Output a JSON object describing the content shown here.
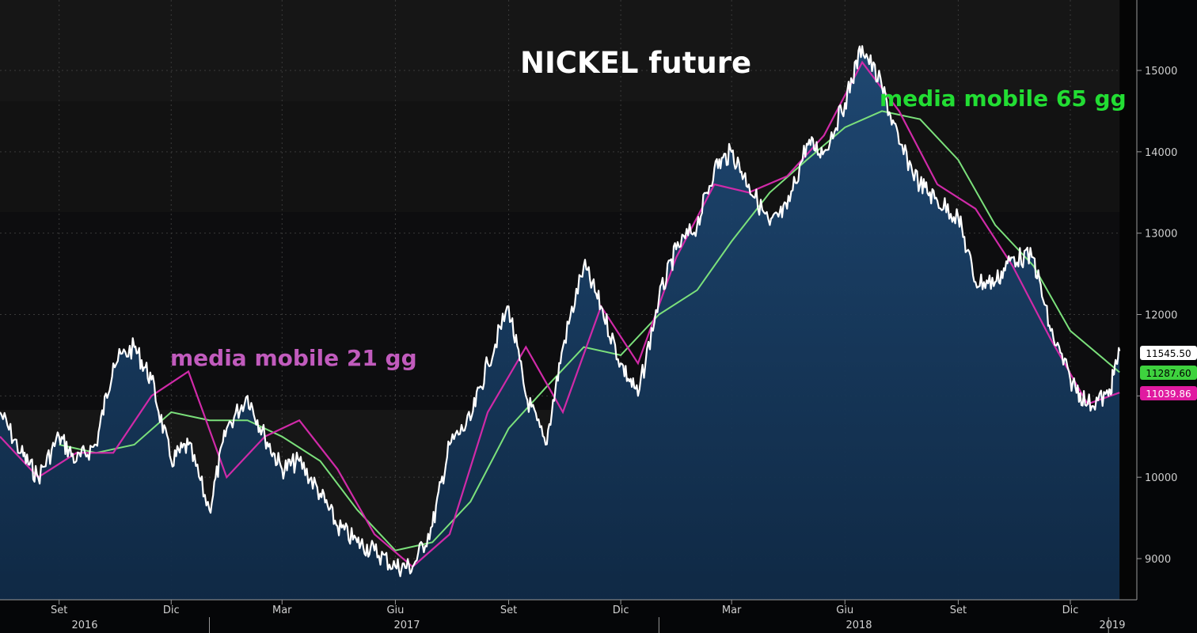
{
  "chart_data": {
    "type": "line",
    "title": "NICKEL future",
    "annotations": [
      {
        "text": "media mobile 21 gg",
        "color": "#c15bbd"
      },
      {
        "text": "media mobile 65 gg",
        "color": "#22dd33"
      }
    ],
    "x_month_labels": [
      "Set",
      "Dic",
      "Mar",
      "Giu",
      "Set",
      "Dic",
      "Mar",
      "Giu",
      "Set",
      "Dic"
    ],
    "x_year_labels": [
      "2016",
      "2017",
      "2018",
      "2019"
    ],
    "y_ticks": [
      9000,
      10000,
      11000,
      12000,
      13000,
      14000,
      15000
    ],
    "ylim": [
      8500,
      15850
    ],
    "grid": true,
    "colors": {
      "price": "#ffffff",
      "ma21": "#d02aa8",
      "ma65": "#7be07b",
      "fill": "#173a5e",
      "background": "#161616"
    },
    "last_values": [
      {
        "label": "11545.50",
        "value": 11545.5,
        "bg": "#ffffff",
        "fg": "#000000"
      },
      {
        "label": "11287.60",
        "value": 11287.6,
        "bg": "#3ed23e",
        "fg": "#000000"
      },
      {
        "label": "11039.86",
        "value": 11039.86,
        "bg": "#e01aa0",
        "fg": "#ffffff"
      }
    ],
    "series": [
      {
        "name": "NICKEL future",
        "x": [
          "2016-07-15",
          "2016-08-01",
          "2016-08-15",
          "2016-09-01",
          "2016-09-15",
          "2016-10-01",
          "2016-10-15",
          "2016-11-01",
          "2016-11-15",
          "2016-12-01",
          "2016-12-15",
          "2017-01-01",
          "2017-01-15",
          "2017-02-01",
          "2017-02-15",
          "2017-03-01",
          "2017-03-15",
          "2017-04-01",
          "2017-04-15",
          "2017-05-01",
          "2017-05-15",
          "2017-06-01",
          "2017-06-15",
          "2017-07-01",
          "2017-07-15",
          "2017-08-01",
          "2017-08-15",
          "2017-09-01",
          "2017-09-15",
          "2017-10-01",
          "2017-10-15",
          "2017-11-01",
          "2017-11-15",
          "2017-12-01",
          "2017-12-15",
          "2018-01-01",
          "2018-01-15",
          "2018-02-01",
          "2018-02-15",
          "2018-03-01",
          "2018-03-15",
          "2018-04-01",
          "2018-04-15",
          "2018-05-01",
          "2018-05-15",
          "2018-06-01",
          "2018-06-15",
          "2018-07-01",
          "2018-07-15",
          "2018-08-01",
          "2018-08-15",
          "2018-09-01",
          "2018-09-15",
          "2018-10-01",
          "2018-10-15",
          "2018-11-01",
          "2018-11-15",
          "2018-12-01",
          "2018-12-15",
          "2019-01-01",
          "2019-01-10"
        ],
        "values": [
          10800,
          10300,
          10000,
          10500,
          10200,
          10400,
          11400,
          11600,
          11200,
          10200,
          10400,
          9600,
          10600,
          11000,
          10500,
          10100,
          10200,
          9800,
          9400,
          9200,
          9100,
          8900,
          8900,
          9400,
          10400,
          10700,
          11400,
          12100,
          11000,
          10400,
          11600,
          12600,
          12100,
          11400,
          11000,
          12200,
          12800,
          13100,
          13800,
          14000,
          13600,
          13100,
          13300,
          14100,
          14000,
          14600,
          15300,
          14800,
          14100,
          13600,
          13400,
          13200,
          12400,
          12400,
          12700,
          12700,
          11800,
          11200,
          10900,
          11000,
          11550
        ]
      },
      {
        "name": "media mobile 21 gg",
        "x": [
          "2016-07-15",
          "2016-08-15",
          "2016-09-15",
          "2016-10-15",
          "2016-11-15",
          "2016-12-15",
          "2017-01-15",
          "2017-02-15",
          "2017-03-15",
          "2017-04-15",
          "2017-05-15",
          "2017-06-15",
          "2017-07-15",
          "2017-08-15",
          "2017-09-15",
          "2017-10-15",
          "2017-11-15",
          "2017-12-15",
          "2018-01-15",
          "2018-02-15",
          "2018-03-15",
          "2018-04-15",
          "2018-05-15",
          "2018-06-15",
          "2018-07-15",
          "2018-08-15",
          "2018-09-15",
          "2018-10-15",
          "2018-11-15",
          "2018-12-15",
          "2019-01-10"
        ],
        "values": [
          10500,
          10000,
          10300,
          10300,
          11000,
          11300,
          10000,
          10500,
          10700,
          10100,
          9300,
          8900,
          9300,
          10800,
          11600,
          10800,
          12100,
          11400,
          12700,
          13600,
          13500,
          13700,
          14200,
          15100,
          14500,
          13600,
          13300,
          12600,
          11700,
          10900,
          11040
        ]
      },
      {
        "name": "media mobile 65 gg",
        "x": [
          "2016-09-01",
          "2016-10-01",
          "2016-11-01",
          "2016-12-01",
          "2017-01-01",
          "2017-02-01",
          "2017-03-01",
          "2017-04-01",
          "2017-05-01",
          "2017-06-01",
          "2017-07-01",
          "2017-08-01",
          "2017-09-01",
          "2017-10-01",
          "2017-11-01",
          "2017-12-01",
          "2018-01-01",
          "2018-02-01",
          "2018-03-01",
          "2018-04-01",
          "2018-05-01",
          "2018-06-01",
          "2018-07-01",
          "2018-08-01",
          "2018-09-01",
          "2018-10-01",
          "2018-11-01",
          "2018-12-01",
          "2019-01-10"
        ],
        "values": [
          10400,
          10300,
          10400,
          10800,
          10700,
          10700,
          10500,
          10200,
          9600,
          9100,
          9200,
          9700,
          10600,
          11100,
          11600,
          11500,
          12000,
          12300,
          12900,
          13500,
          13900,
          14300,
          14500,
          14400,
          13900,
          13100,
          12600,
          11800,
          11290
        ]
      }
    ]
  }
}
